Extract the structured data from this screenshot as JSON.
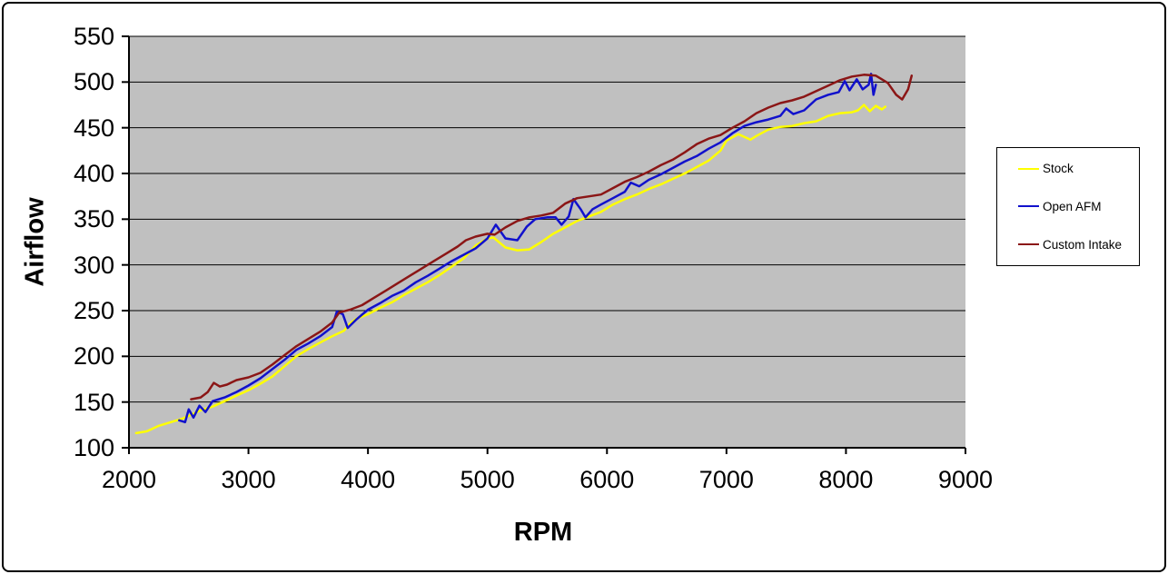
{
  "legend": {
    "items": [
      {
        "label": "Stock",
        "color": "#FFFF00"
      },
      {
        "label": "Open AFM",
        "color": "#1111CC"
      },
      {
        "label": "Custom Intake",
        "color": "#8B1616"
      }
    ]
  },
  "chart_data": {
    "type": "line",
    "title": "",
    "xlabel": "RPM",
    "ylabel": "Airflow",
    "xlim": [
      2000,
      9000
    ],
    "ylim": [
      100,
      550
    ],
    "x_ticks": [
      2000,
      3000,
      4000,
      5000,
      6000,
      7000,
      8000,
      9000
    ],
    "y_ticks": [
      100,
      150,
      200,
      250,
      300,
      350,
      400,
      450,
      500,
      550
    ],
    "grid": "horizontal-black",
    "plot_background": "#C0C0C0",
    "legend_position": "right-outside",
    "series": [
      {
        "name": "Stock",
        "color": "#FFFF00",
        "points": [
          [
            2060,
            116
          ],
          [
            2150,
            118
          ],
          [
            2250,
            124
          ],
          [
            2350,
            128
          ],
          [
            2450,
            132
          ],
          [
            2500,
            135
          ],
          [
            2600,
            141
          ],
          [
            2700,
            145
          ],
          [
            2800,
            151
          ],
          [
            2900,
            157
          ],
          [
            3000,
            163
          ],
          [
            3100,
            170
          ],
          [
            3200,
            178
          ],
          [
            3300,
            189
          ],
          [
            3400,
            200
          ],
          [
            3500,
            208
          ],
          [
            3600,
            215
          ],
          [
            3700,
            222
          ],
          [
            3800,
            228
          ],
          [
            3850,
            236
          ],
          [
            3900,
            241
          ],
          [
            4000,
            246
          ],
          [
            4100,
            253
          ],
          [
            4200,
            259
          ],
          [
            4300,
            267
          ],
          [
            4400,
            274
          ],
          [
            4500,
            281
          ],
          [
            4600,
            289
          ],
          [
            4700,
            298
          ],
          [
            4800,
            307
          ],
          [
            4900,
            321
          ],
          [
            5000,
            329
          ],
          [
            5050,
            330
          ],
          [
            5150,
            319
          ],
          [
            5250,
            316
          ],
          [
            5350,
            317
          ],
          [
            5450,
            325
          ],
          [
            5550,
            334
          ],
          [
            5650,
            341
          ],
          [
            5750,
            348
          ],
          [
            5850,
            353
          ],
          [
            5950,
            358
          ],
          [
            6050,
            366
          ],
          [
            6150,
            372
          ],
          [
            6250,
            377
          ],
          [
            6350,
            383
          ],
          [
            6450,
            388
          ],
          [
            6550,
            394
          ],
          [
            6650,
            400
          ],
          [
            6750,
            407
          ],
          [
            6850,
            414
          ],
          [
            6950,
            425
          ],
          [
            7000,
            436
          ],
          [
            7100,
            443
          ],
          [
            7200,
            437
          ],
          [
            7250,
            441
          ],
          [
            7350,
            448
          ],
          [
            7450,
            451
          ],
          [
            7550,
            452
          ],
          [
            7650,
            455
          ],
          [
            7750,
            457
          ],
          [
            7850,
            463
          ],
          [
            7950,
            466
          ],
          [
            8050,
            467
          ],
          [
            8100,
            469
          ],
          [
            8150,
            475
          ],
          [
            8200,
            468
          ],
          [
            8250,
            474
          ],
          [
            8300,
            470
          ],
          [
            8330,
            473
          ]
        ]
      },
      {
        "name": "Open AFM",
        "color": "#1111CC",
        "points": [
          [
            2420,
            130
          ],
          [
            2470,
            128
          ],
          [
            2500,
            142
          ],
          [
            2540,
            133
          ],
          [
            2590,
            146
          ],
          [
            2640,
            139
          ],
          [
            2700,
            151
          ],
          [
            2800,
            155
          ],
          [
            2900,
            161
          ],
          [
            3000,
            168
          ],
          [
            3100,
            176
          ],
          [
            3200,
            186
          ],
          [
            3300,
            196
          ],
          [
            3400,
            207
          ],
          [
            3500,
            214
          ],
          [
            3600,
            222
          ],
          [
            3700,
            232
          ],
          [
            3740,
            249
          ],
          [
            3790,
            246
          ],
          [
            3830,
            231
          ],
          [
            3900,
            240
          ],
          [
            4000,
            251
          ],
          [
            4100,
            258
          ],
          [
            4200,
            266
          ],
          [
            4300,
            272
          ],
          [
            4400,
            281
          ],
          [
            4500,
            288
          ],
          [
            4600,
            296
          ],
          [
            4700,
            304
          ],
          [
            4800,
            311
          ],
          [
            4900,
            318
          ],
          [
            5000,
            329
          ],
          [
            5070,
            344
          ],
          [
            5150,
            329
          ],
          [
            5250,
            327
          ],
          [
            5330,
            342
          ],
          [
            5400,
            350
          ],
          [
            5500,
            352
          ],
          [
            5570,
            352
          ],
          [
            5620,
            344
          ],
          [
            5680,
            353
          ],
          [
            5720,
            372
          ],
          [
            5780,
            361
          ],
          [
            5820,
            352
          ],
          [
            5880,
            361
          ],
          [
            5950,
            366
          ],
          [
            6050,
            373
          ],
          [
            6150,
            380
          ],
          [
            6200,
            390
          ],
          [
            6270,
            386
          ],
          [
            6350,
            393
          ],
          [
            6450,
            399
          ],
          [
            6550,
            406
          ],
          [
            6650,
            413
          ],
          [
            6750,
            419
          ],
          [
            6850,
            427
          ],
          [
            6950,
            434
          ],
          [
            7050,
            444
          ],
          [
            7150,
            452
          ],
          [
            7250,
            456
          ],
          [
            7350,
            459
          ],
          [
            7450,
            463
          ],
          [
            7500,
            471
          ],
          [
            7560,
            465
          ],
          [
            7650,
            469
          ],
          [
            7750,
            481
          ],
          [
            7850,
            486
          ],
          [
            7940,
            489
          ],
          [
            7990,
            501
          ],
          [
            8030,
            491
          ],
          [
            8090,
            503
          ],
          [
            8140,
            492
          ],
          [
            8190,
            497
          ],
          [
            8210,
            509
          ],
          [
            8230,
            486
          ],
          [
            8250,
            497
          ]
        ]
      },
      {
        "name": "Custom Intake",
        "color": "#8B1616",
        "points": [
          [
            2520,
            153
          ],
          [
            2600,
            155
          ],
          [
            2660,
            161
          ],
          [
            2710,
            171
          ],
          [
            2760,
            167
          ],
          [
            2820,
            169
          ],
          [
            2900,
            174
          ],
          [
            3000,
            177
          ],
          [
            3100,
            182
          ],
          [
            3200,
            191
          ],
          [
            3300,
            201
          ],
          [
            3400,
            211
          ],
          [
            3500,
            219
          ],
          [
            3600,
            227
          ],
          [
            3700,
            237
          ],
          [
            3760,
            248
          ],
          [
            3850,
            251
          ],
          [
            3950,
            256
          ],
          [
            4050,
            264
          ],
          [
            4150,
            272
          ],
          [
            4250,
            280
          ],
          [
            4350,
            288
          ],
          [
            4450,
            296
          ],
          [
            4550,
            304
          ],
          [
            4650,
            312
          ],
          [
            4750,
            320
          ],
          [
            4820,
            327
          ],
          [
            4900,
            331
          ],
          [
            5000,
            334
          ],
          [
            5060,
            333
          ],
          [
            5150,
            341
          ],
          [
            5250,
            348
          ],
          [
            5350,
            352
          ],
          [
            5450,
            354
          ],
          [
            5550,
            357
          ],
          [
            5650,
            367
          ],
          [
            5750,
            373
          ],
          [
            5850,
            375
          ],
          [
            5950,
            377
          ],
          [
            6050,
            384
          ],
          [
            6150,
            391
          ],
          [
            6250,
            396
          ],
          [
            6350,
            402
          ],
          [
            6450,
            409
          ],
          [
            6550,
            415
          ],
          [
            6650,
            423
          ],
          [
            6750,
            432
          ],
          [
            6850,
            438
          ],
          [
            6950,
            442
          ],
          [
            7050,
            450
          ],
          [
            7150,
            457
          ],
          [
            7250,
            466
          ],
          [
            7350,
            472
          ],
          [
            7450,
            477
          ],
          [
            7550,
            480
          ],
          [
            7650,
            484
          ],
          [
            7750,
            490
          ],
          [
            7850,
            496
          ],
          [
            7950,
            502
          ],
          [
            8050,
            506
          ],
          [
            8150,
            508
          ],
          [
            8250,
            507
          ],
          [
            8350,
            499
          ],
          [
            8420,
            486
          ],
          [
            8470,
            481
          ],
          [
            8520,
            492
          ],
          [
            8550,
            507
          ]
        ]
      }
    ]
  }
}
